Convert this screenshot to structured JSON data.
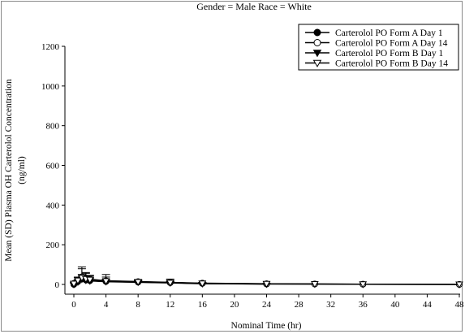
{
  "chart_data": {
    "type": "line",
    "subtitle": "Gender = Male  Race = White",
    "xlabel": "Nominal Time (hr)",
    "ylabel_line1": "Mean (SD) Plasma OH Carterolol Concentration",
    "ylabel_line2": "(ng/ml)",
    "xlim": [
      -2,
      48
    ],
    "ylim": [
      -40,
      1200
    ],
    "xticks": [
      0,
      4,
      8,
      12,
      16,
      20,
      24,
      28,
      32,
      36,
      40,
      44,
      48
    ],
    "yticks": [
      0,
      200,
      400,
      600,
      800,
      1000,
      1200
    ],
    "grid": false,
    "legend_position": "top-right",
    "series": [
      {
        "name": "Carterolol PO Form A  Day 1",
        "marker": "circle-filled",
        "x": [
          0,
          0.5,
          1,
          1.5,
          2,
          4,
          8,
          12,
          16,
          24
        ],
        "y": [
          0,
          14,
          28,
          22,
          19,
          15,
          12,
          9,
          5,
          2
        ],
        "sd": [
          0,
          10,
          22,
          18,
          15,
          12,
          9,
          7,
          4,
          0
        ]
      },
      {
        "name": "Carterolol PO Form A  Day 14",
        "marker": "circle-open",
        "x": [
          0,
          0.5,
          1,
          1.5,
          2,
          4,
          8,
          12,
          16,
          24,
          30,
          36,
          48
        ],
        "y": [
          5,
          22,
          38,
          30,
          26,
          18,
          14,
          10,
          6,
          3,
          2,
          1,
          0
        ],
        "sd": [
          4,
          15,
          50,
          30,
          20,
          32,
          10,
          17,
          4,
          2,
          0,
          0,
          0
        ]
      },
      {
        "name": "Carterolol PO Form B  Day 1",
        "marker": "triangle-down-filled",
        "x": [
          0,
          0.5,
          1,
          1.5,
          2,
          4,
          8,
          12,
          16,
          24
        ],
        "y": [
          0,
          12,
          26,
          21,
          18,
          14,
          11,
          8,
          4,
          2
        ],
        "sd": [
          0,
          10,
          20,
          16,
          14,
          10,
          8,
          6,
          3,
          0
        ]
      },
      {
        "name": "Carterolol PO Form B  Day 14",
        "marker": "triangle-down-open",
        "x": [
          0,
          0.5,
          1,
          1.5,
          2,
          4,
          8,
          12,
          16,
          24,
          30,
          36,
          48
        ],
        "y": [
          4,
          20,
          34,
          28,
          24,
          17,
          13,
          9,
          5,
          3,
          2,
          1,
          0
        ],
        "sd": [
          3,
          14,
          45,
          28,
          18,
          20,
          10,
          12,
          4,
          2,
          0,
          0,
          0
        ]
      }
    ]
  }
}
